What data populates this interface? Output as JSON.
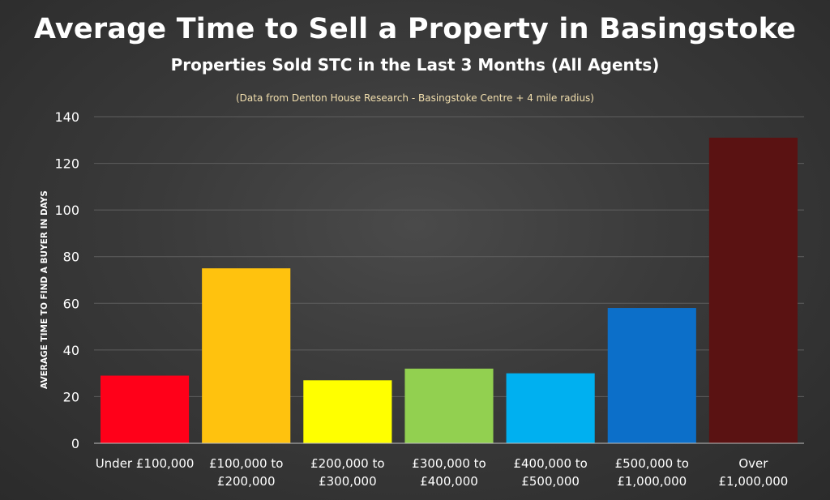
{
  "chart_data": {
    "type": "bar",
    "title": "Average Time to Sell a Property in Basingstoke",
    "subtitle": "Properties Sold STC in the Last 3 Months (All Agents)",
    "note": "(Data from Denton House Research - Basingstoke Centre + 4 mile radius)",
    "ylabel": "AVERAGE TIME TO FIND A BUYER IN DAYS",
    "ylim": [
      0,
      140
    ],
    "yticks": [
      0,
      20,
      40,
      60,
      80,
      100,
      120,
      140
    ],
    "grid": true,
    "categories": [
      [
        "Under £100,000"
      ],
      [
        "£100,000 to",
        "£200,000"
      ],
      [
        "£200,000 to",
        "£300,000"
      ],
      [
        "£300,000 to",
        "£400,000"
      ],
      [
        "£400,000 to",
        "£500,000"
      ],
      [
        "£500,000 to",
        "£1,000,000"
      ],
      [
        "Over",
        "£1,000,000"
      ]
    ],
    "values": [
      29,
      75,
      27,
      32,
      30,
      58,
      131
    ],
    "colors": [
      "#ff0019",
      "#ffc20e",
      "#ffff00",
      "#92d050",
      "#00b0f0",
      "#0c6fc9",
      "#5a1212"
    ]
  }
}
